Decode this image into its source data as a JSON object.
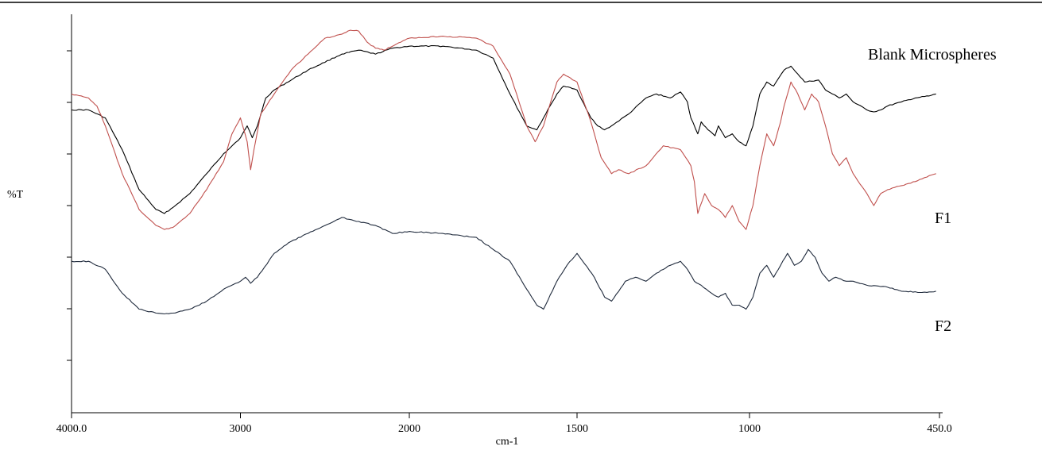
{
  "chart_data": {
    "type": "line",
    "ylabel": "%T",
    "xlabel": "cm-1",
    "x_axis": {
      "reversed": true,
      "range": [
        4000,
        450
      ],
      "tick_values": [
        4000,
        3000,
        2000,
        1500,
        1000,
        450
      ],
      "tick_labels": [
        "4000.0",
        "3000",
        "2000",
        "1500",
        "1000",
        "450.0"
      ]
    },
    "y_axis": {
      "range": [
        0,
        100
      ],
      "tick_labels_shown": false,
      "minor_tick_count": 7
    },
    "grid": false,
    "legend": "inline labels at right end of each trace",
    "series": [
      {
        "name": "Blank Microspheres",
        "color": "#000000",
        "points": [
          [
            4000,
            76
          ],
          [
            3900,
            76
          ],
          [
            3800,
            74
          ],
          [
            3700,
            66
          ],
          [
            3600,
            56
          ],
          [
            3500,
            51
          ],
          [
            3450,
            50
          ],
          [
            3400,
            51.5
          ],
          [
            3300,
            55
          ],
          [
            3200,
            60
          ],
          [
            3100,
            65
          ],
          [
            3000,
            69
          ],
          [
            2960,
            72
          ],
          [
            2930,
            69
          ],
          [
            2900,
            72
          ],
          [
            2850,
            79
          ],
          [
            2800,
            81
          ],
          [
            2600,
            86
          ],
          [
            2400,
            90
          ],
          [
            2300,
            91
          ],
          [
            2200,
            90
          ],
          [
            2100,
            91.5
          ],
          [
            2000,
            92
          ],
          [
            1900,
            92
          ],
          [
            1800,
            91
          ],
          [
            1750,
            89
          ],
          [
            1700,
            80
          ],
          [
            1650,
            72
          ],
          [
            1620,
            71
          ],
          [
            1600,
            74
          ],
          [
            1560,
            80
          ],
          [
            1540,
            82
          ],
          [
            1500,
            81
          ],
          [
            1460,
            74
          ],
          [
            1440,
            72
          ],
          [
            1420,
            71
          ],
          [
            1400,
            72
          ],
          [
            1350,
            75
          ],
          [
            1300,
            79
          ],
          [
            1270,
            80
          ],
          [
            1230,
            79
          ],
          [
            1200,
            80.5
          ],
          [
            1180,
            78
          ],
          [
            1170,
            74
          ],
          [
            1150,
            70
          ],
          [
            1140,
            73
          ],
          [
            1120,
            71
          ],
          [
            1100,
            69.5
          ],
          [
            1090,
            72
          ],
          [
            1070,
            69
          ],
          [
            1050,
            70
          ],
          [
            1030,
            68
          ],
          [
            1010,
            67
          ],
          [
            990,
            72
          ],
          [
            970,
            80
          ],
          [
            950,
            83
          ],
          [
            930,
            82
          ],
          [
            900,
            86
          ],
          [
            880,
            87
          ],
          [
            860,
            85
          ],
          [
            840,
            83
          ],
          [
            800,
            83.5
          ],
          [
            780,
            81
          ],
          [
            760,
            80
          ],
          [
            740,
            79
          ],
          [
            720,
            80
          ],
          [
            700,
            78
          ],
          [
            660,
            76
          ],
          [
            640,
            75.5
          ],
          [
            620,
            76
          ],
          [
            600,
            77
          ],
          [
            560,
            78
          ],
          [
            520,
            79
          ],
          [
            480,
            79.5
          ],
          [
            460,
            80
          ]
        ]
      },
      {
        "name": "F1",
        "color": "#c0504d",
        "points": [
          [
            4000,
            80
          ],
          [
            3900,
            79
          ],
          [
            3850,
            77
          ],
          [
            3800,
            72
          ],
          [
            3700,
            60
          ],
          [
            3600,
            51
          ],
          [
            3500,
            47
          ],
          [
            3450,
            46
          ],
          [
            3400,
            46.5
          ],
          [
            3300,
            50
          ],
          [
            3200,
            56
          ],
          [
            3100,
            63
          ],
          [
            3050,
            70
          ],
          [
            3000,
            74
          ],
          [
            2960,
            68
          ],
          [
            2940,
            61
          ],
          [
            2920,
            66
          ],
          [
            2880,
            75
          ],
          [
            2800,
            80
          ],
          [
            2700,
            86
          ],
          [
            2600,
            90
          ],
          [
            2500,
            94
          ],
          [
            2400,
            95
          ],
          [
            2350,
            96
          ],
          [
            2300,
            95.8
          ],
          [
            2250,
            93
          ],
          [
            2200,
            91.5
          ],
          [
            2150,
            91
          ],
          [
            2100,
            92
          ],
          [
            2050,
            93
          ],
          [
            2000,
            94
          ],
          [
            1900,
            94.5
          ],
          [
            1800,
            94
          ],
          [
            1750,
            92
          ],
          [
            1700,
            85
          ],
          [
            1680,
            80
          ],
          [
            1650,
            72
          ],
          [
            1625,
            68
          ],
          [
            1600,
            72
          ],
          [
            1560,
            83
          ],
          [
            1540,
            85
          ],
          [
            1500,
            83
          ],
          [
            1460,
            73
          ],
          [
            1430,
            64
          ],
          [
            1400,
            60
          ],
          [
            1380,
            61
          ],
          [
            1350,
            60
          ],
          [
            1300,
            62
          ],
          [
            1250,
            67
          ],
          [
            1200,
            66
          ],
          [
            1170,
            62
          ],
          [
            1160,
            58
          ],
          [
            1150,
            50
          ],
          [
            1130,
            55
          ],
          [
            1110,
            52
          ],
          [
            1090,
            51
          ],
          [
            1070,
            49
          ],
          [
            1050,
            52
          ],
          [
            1030,
            48
          ],
          [
            1010,
            46
          ],
          [
            990,
            52
          ],
          [
            970,
            62
          ],
          [
            950,
            70
          ],
          [
            930,
            67
          ],
          [
            910,
            73
          ],
          [
            900,
            77
          ],
          [
            880,
            83
          ],
          [
            860,
            80
          ],
          [
            840,
            76
          ],
          [
            820,
            80
          ],
          [
            800,
            78
          ],
          [
            780,
            72
          ],
          [
            760,
            65
          ],
          [
            740,
            62
          ],
          [
            720,
            64
          ],
          [
            700,
            60
          ],
          [
            660,
            55
          ],
          [
            640,
            52
          ],
          [
            620,
            55
          ],
          [
            600,
            56
          ],
          [
            560,
            57
          ],
          [
            520,
            58
          ],
          [
            480,
            59.5
          ],
          [
            460,
            60
          ]
        ]
      },
      {
        "name": "F2",
        "color": "#1f2a3c",
        "points": [
          [
            4000,
            38
          ],
          [
            3900,
            38
          ],
          [
            3800,
            36
          ],
          [
            3700,
            30
          ],
          [
            3600,
            26
          ],
          [
            3500,
            25
          ],
          [
            3450,
            24.8
          ],
          [
            3400,
            25
          ],
          [
            3300,
            26
          ],
          [
            3200,
            28
          ],
          [
            3100,
            31
          ],
          [
            3000,
            33
          ],
          [
            2970,
            34
          ],
          [
            2940,
            32.5
          ],
          [
            2900,
            34
          ],
          [
            2800,
            40
          ],
          [
            2700,
            43
          ],
          [
            2600,
            45
          ],
          [
            2500,
            47
          ],
          [
            2400,
            49
          ],
          [
            2300,
            48
          ],
          [
            2200,
            47
          ],
          [
            2100,
            45
          ],
          [
            2000,
            45.5
          ],
          [
            1900,
            45
          ],
          [
            1800,
            44
          ],
          [
            1700,
            38
          ],
          [
            1650,
            31
          ],
          [
            1620,
            27
          ],
          [
            1600,
            26
          ],
          [
            1560,
            33
          ],
          [
            1530,
            37
          ],
          [
            1500,
            40
          ],
          [
            1450,
            34
          ],
          [
            1420,
            29
          ],
          [
            1400,
            28
          ],
          [
            1360,
            33
          ],
          [
            1330,
            34
          ],
          [
            1300,
            33
          ],
          [
            1270,
            35
          ],
          [
            1230,
            37
          ],
          [
            1200,
            38
          ],
          [
            1180,
            36
          ],
          [
            1160,
            33
          ],
          [
            1140,
            32
          ],
          [
            1110,
            30
          ],
          [
            1090,
            29
          ],
          [
            1070,
            30
          ],
          [
            1050,
            27
          ],
          [
            1030,
            27
          ],
          [
            1010,
            26
          ],
          [
            990,
            29
          ],
          [
            970,
            35
          ],
          [
            950,
            37
          ],
          [
            930,
            34
          ],
          [
            910,
            37
          ],
          [
            890,
            40
          ],
          [
            870,
            37
          ],
          [
            850,
            38
          ],
          [
            830,
            41
          ],
          [
            810,
            39
          ],
          [
            790,
            35
          ],
          [
            770,
            33
          ],
          [
            750,
            34
          ],
          [
            720,
            33
          ],
          [
            700,
            33
          ],
          [
            660,
            32
          ],
          [
            600,
            31.5
          ],
          [
            560,
            30.5
          ],
          [
            500,
            30.2
          ],
          [
            460,
            30.5
          ]
        ]
      }
    ]
  }
}
